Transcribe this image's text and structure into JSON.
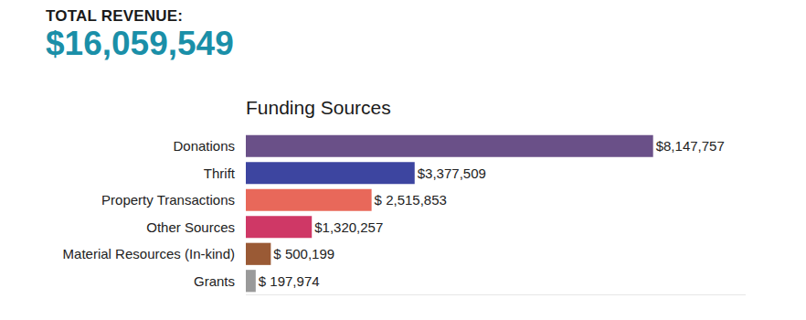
{
  "header": {
    "label": "TOTAL REVENUE:",
    "total": "$16,059,549"
  },
  "chart_data": {
    "type": "bar",
    "orientation": "horizontal",
    "title": "Funding Sources",
    "categories": [
      "Donations",
      "Thrift",
      "Property Transactions",
      "Other Sources",
      "Material Resources (In-kind)",
      "Grants"
    ],
    "values": [
      8147757,
      3377509,
      2515853,
      1320257,
      500199,
      197974
    ],
    "value_labels": [
      "$8,147,757",
      "$3,377,509",
      "$ 2,515,853",
      "$1,320,257",
      "$ 500,199",
      "$ 197,974"
    ],
    "colors": [
      "#6a5088",
      "#3d45a0",
      "#e8685a",
      "#cf3866",
      "#9a5a35",
      "#9a9a9a"
    ],
    "xlim": [
      0,
      10000000
    ],
    "data_labels": true,
    "tick_labels": "y",
    "grid": false
  }
}
